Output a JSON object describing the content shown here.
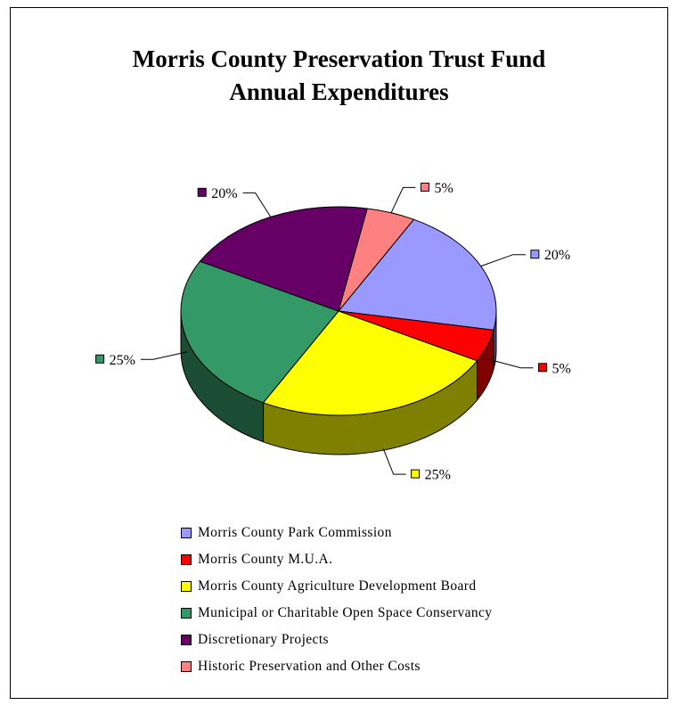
{
  "title_lines": [
    "Morris County Preservation Trust Fund",
    "Annual Expenditures"
  ],
  "chart_data": {
    "type": "pie",
    "style": "3d",
    "title": "Morris County Preservation Trust Fund Annual Expenditures",
    "legend_position": "bottom",
    "slices": [
      {
        "label": "Morris County Park Commission",
        "value": 20,
        "value_label": "20%",
        "color": "#9999ff",
        "side_color": "#4c4c80"
      },
      {
        "label": "Morris County M.U.A.",
        "value": 5,
        "value_label": "5%",
        "color": "#ff0000",
        "side_color": "#800000"
      },
      {
        "label": "Morris County Agriculture Development Board",
        "value": 25,
        "value_label": "25%",
        "color": "#ffff00",
        "side_color": "#808000"
      },
      {
        "label": "Municipal or Charitable Open Space Conservancy",
        "value": 25,
        "value_label": "25%",
        "color": "#339966",
        "side_color": "#1a4d33"
      },
      {
        "label": "Discretionary Projects",
        "value": 20,
        "value_label": "20%",
        "color": "#660066",
        "side_color": "#330033"
      },
      {
        "label": "Historic Preservation and Other Costs",
        "value": 5,
        "value_label": "5%",
        "color": "#ff8080",
        "side_color": "#804040"
      }
    ]
  }
}
